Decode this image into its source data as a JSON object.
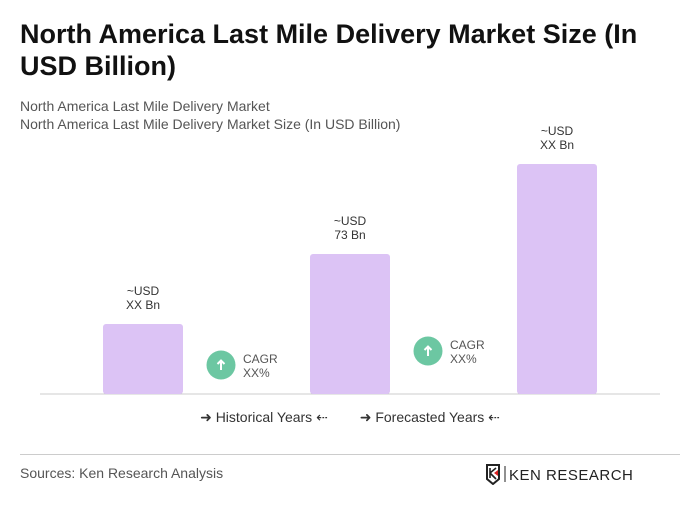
{
  "title": "North America Last Mile Delivery Market Size (In USD Billion)",
  "subtitle1": "North America Last Mile Delivery Market",
  "subtitle2": "North America Last Mile Delivery Market Size (In USD Billion)",
  "chart_data": {
    "type": "bar",
    "categories": [
      "",
      "",
      ""
    ],
    "values": [
      null,
      73,
      null
    ],
    "data_labels": [
      [
        "~USD",
        "XX Bn"
      ],
      [
        "~USD",
        "73 Bn"
      ],
      [
        "~USD",
        "XX Bn"
      ]
    ],
    "bar_color": "#dcc3f5",
    "cagr": [
      {
        "label": "CAGR",
        "value": "XX%"
      },
      {
        "label": "CAGR",
        "value": "XX%"
      }
    ],
    "cagr_color": "#6cc7a2",
    "grid": false
  },
  "legend": {
    "historical": "Historical Years",
    "forecasted": "Forecasted Years"
  },
  "source": "Sources: Ken Research Analysis",
  "logo_text": "KEN RESEARCH"
}
